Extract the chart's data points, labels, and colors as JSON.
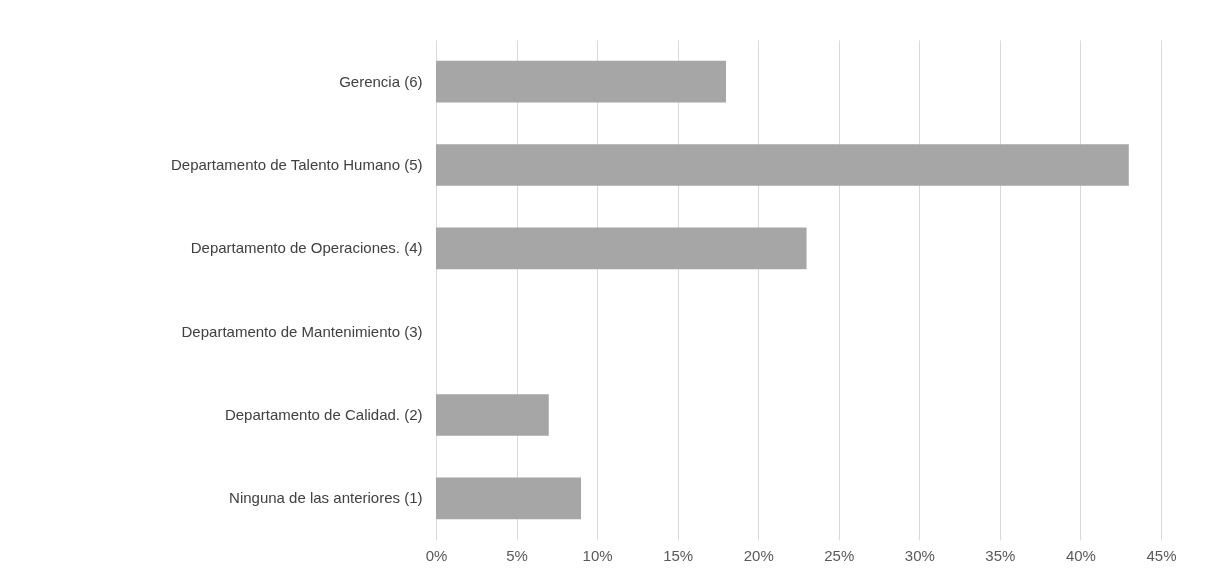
{
  "chart_data": {
    "type": "bar",
    "orientation": "horizontal",
    "categories": [
      "Gerencia (6)",
      "Departamento de Talento Humano (5)",
      "Departamento de Operaciones. (4)",
      "Departamento de Mantenimiento (3)",
      "Departamento de Calidad. (2)",
      "Ninguna de las anteriores (1)"
    ],
    "values": [
      18,
      43,
      23,
      0,
      7,
      9
    ],
    "color": "#a6a6a6",
    "xlim": [
      0,
      45
    ],
    "xticks": [
      {
        "value": 0,
        "label": "0%"
      },
      {
        "value": 5,
        "label": "5%"
      },
      {
        "value": 10,
        "label": "10%"
      },
      {
        "value": 15,
        "label": "15%"
      },
      {
        "value": 20,
        "label": "20%"
      },
      {
        "value": 25,
        "label": "25%"
      },
      {
        "value": 30,
        "label": "30%"
      },
      {
        "value": 35,
        "label": "35%"
      },
      {
        "value": 40,
        "label": "40%"
      },
      {
        "value": 45,
        "label": "45%"
      }
    ],
    "grid": "x"
  }
}
